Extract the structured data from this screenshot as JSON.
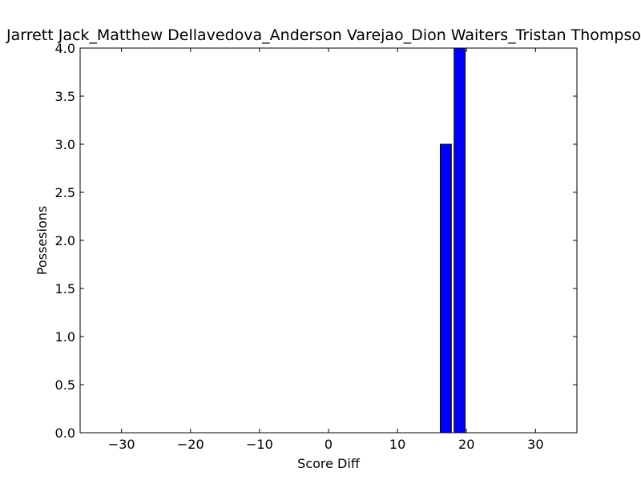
{
  "chart_data": {
    "type": "bar",
    "title": "Jarrett Jack_Matthew Dellavedova_Anderson Varejao_Dion Waiters_Tristan Thompson",
    "xlabel": "Score Diff",
    "ylabel": "Possesions",
    "xlim": [
      -36,
      36
    ],
    "ylim": [
      0,
      4.0
    ],
    "x_ticks": [
      -30,
      -20,
      -10,
      0,
      10,
      20,
      30
    ],
    "x_tick_labels": [
      "−30",
      "−20",
      "−10",
      "0",
      "10",
      "20",
      "30"
    ],
    "y_ticks": [
      0.0,
      0.5,
      1.0,
      1.5,
      2.0,
      2.5,
      3.0,
      3.5,
      4.0
    ],
    "y_tick_labels": [
      "0.0",
      "0.5",
      "1.0",
      "1.5",
      "2.0",
      "2.5",
      "3.0",
      "3.5",
      "4.0"
    ],
    "bar_width": 1.6,
    "bars": [
      {
        "x": 17,
        "value": 3
      },
      {
        "x": 19,
        "value": 4
      }
    ],
    "bar_color": "#0000ff",
    "edge_color": "#000000",
    "grid": false,
    "legend": "none"
  }
}
